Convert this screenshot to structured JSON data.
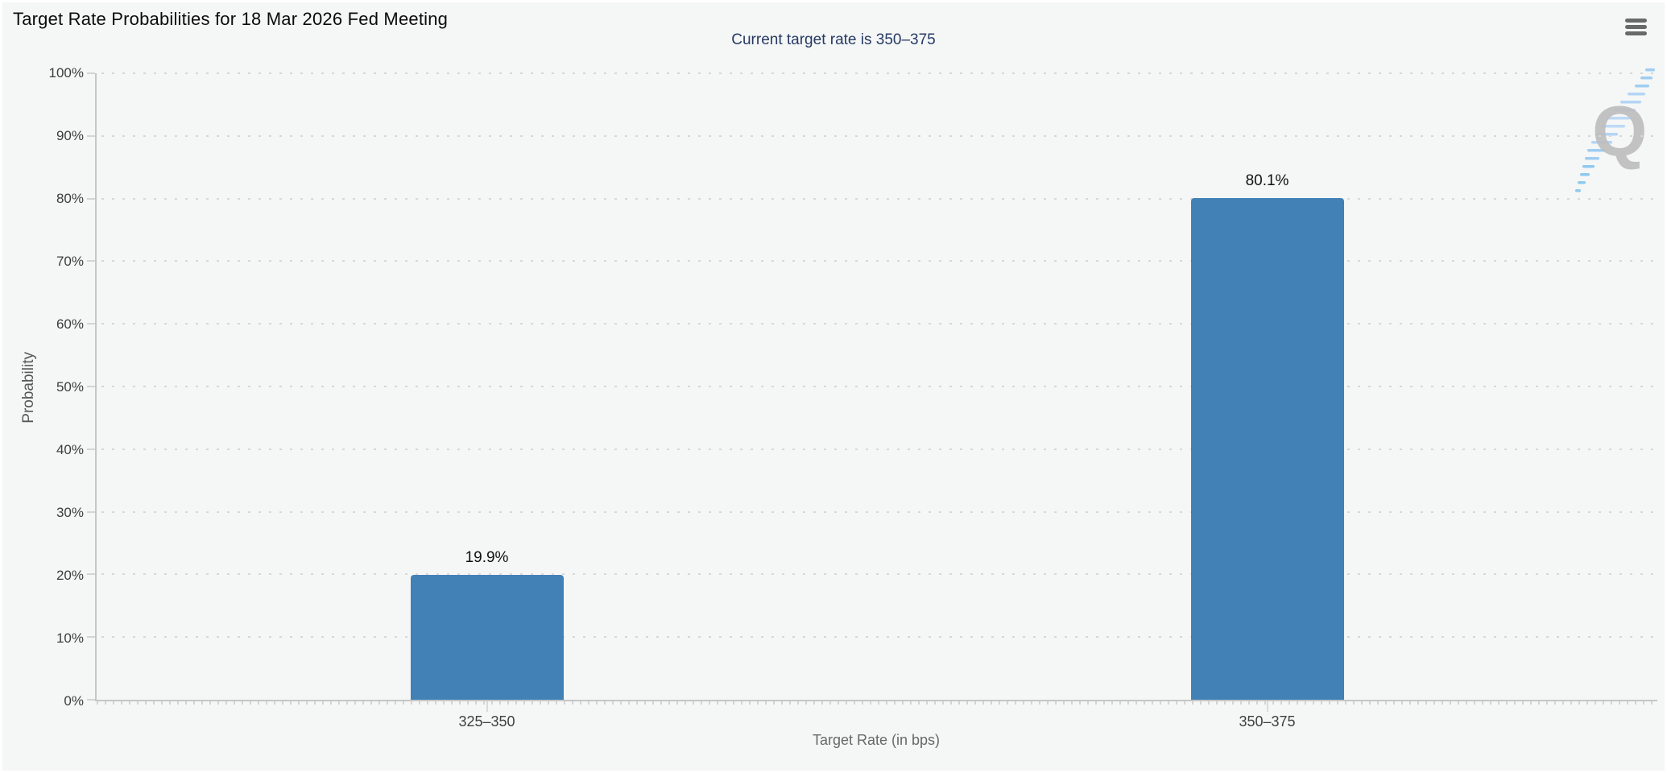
{
  "header": {
    "title": "Target Rate Probabilities for 18 Mar 2026 Fed Meeting"
  },
  "chart_data": {
    "type": "bar",
    "title": "Target Rate Probabilities for 18 Mar 2026 Fed Meeting",
    "subtitle": "Current target rate is 350–375",
    "categories": [
      "325–350",
      "350–375"
    ],
    "values": [
      19.9,
      80.1
    ],
    "value_labels": [
      "19.9%",
      "80.1%"
    ],
    "xlabel": "Target Rate (in bps)",
    "ylabel": "Probability",
    "ylim": [
      0,
      100
    ],
    "ytick_labels": [
      "0%",
      "10%",
      "20%",
      "30%",
      "40%",
      "50%",
      "60%",
      "70%",
      "80%",
      "90%",
      "100%"
    ],
    "grid": "horizontal-dotted",
    "legend": "none",
    "bar_color": "#4281b6",
    "current_target_rate": "350–375"
  },
  "watermark": {
    "letter": "Q"
  },
  "colors": {
    "background": "#f5f6f6",
    "subtitle_text": "#263a63",
    "axis_line": "#c6c6c6",
    "bar": "#4281b6"
  }
}
